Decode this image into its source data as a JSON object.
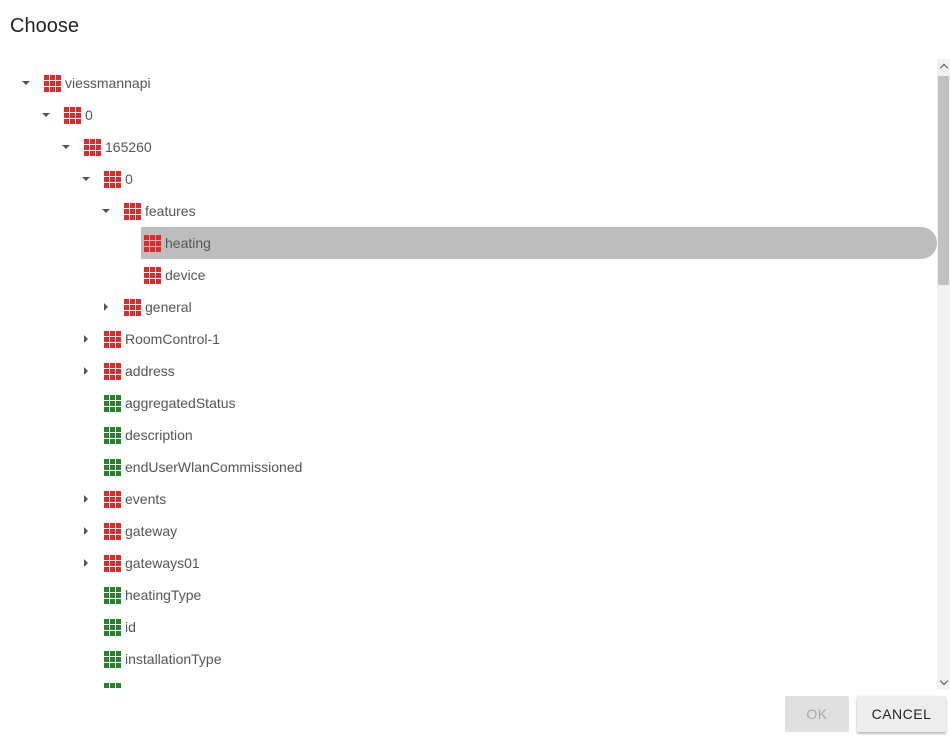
{
  "dialog": {
    "title": "Choose",
    "ok_label": "OK",
    "cancel_label": "CANCEL"
  },
  "colors": {
    "folder_icon": "#d32f2f",
    "state_icon": "#2e7d32",
    "selected_row": "#bdbdbd"
  },
  "tree": [
    {
      "label": "viessmannapi",
      "depth": 0,
      "expander": "expanded",
      "icon": "red-grid-icon"
    },
    {
      "label": "0",
      "depth": 1,
      "expander": "expanded",
      "icon": "red-grid-icon"
    },
    {
      "label": "165260",
      "depth": 2,
      "expander": "expanded",
      "icon": "red-grid-icon"
    },
    {
      "label": "0",
      "depth": 3,
      "expander": "expanded",
      "icon": "red-grid-icon"
    },
    {
      "label": "features",
      "depth": 4,
      "expander": "expanded",
      "icon": "red-grid-icon"
    },
    {
      "label": "heating",
      "depth": 5,
      "expander": "none",
      "icon": "red-grid-icon",
      "selected": true
    },
    {
      "label": "device",
      "depth": 5,
      "expander": "none",
      "icon": "red-grid-icon"
    },
    {
      "label": "general",
      "depth": 4,
      "expander": "collapsed",
      "icon": "red-grid-icon"
    },
    {
      "label": "RoomControl-1",
      "depth": 3,
      "expander": "collapsed",
      "icon": "red-grid-icon"
    },
    {
      "label": "address",
      "depth": 3,
      "expander": "collapsed",
      "icon": "red-grid-icon"
    },
    {
      "label": "aggregatedStatus",
      "depth": 3,
      "expander": "none",
      "icon": "green-grid-icon"
    },
    {
      "label": "description",
      "depth": 3,
      "expander": "none",
      "icon": "green-grid-icon"
    },
    {
      "label": "endUserWlanCommissioned",
      "depth": 3,
      "expander": "none",
      "icon": "green-grid-icon"
    },
    {
      "label": "events",
      "depth": 3,
      "expander": "collapsed",
      "icon": "red-grid-icon"
    },
    {
      "label": "gateway",
      "depth": 3,
      "expander": "collapsed",
      "icon": "red-grid-icon"
    },
    {
      "label": "gateways01",
      "depth": 3,
      "expander": "collapsed",
      "icon": "red-grid-icon"
    },
    {
      "label": "heatingType",
      "depth": 3,
      "expander": "none",
      "icon": "green-grid-icon"
    },
    {
      "label": "id",
      "depth": 3,
      "expander": "none",
      "icon": "green-grid-icon"
    },
    {
      "label": "installationType",
      "depth": 3,
      "expander": "none",
      "icon": "green-grid-icon"
    },
    {
      "label": "",
      "depth": 3,
      "expander": "none",
      "icon": "green-grid-icon"
    }
  ]
}
